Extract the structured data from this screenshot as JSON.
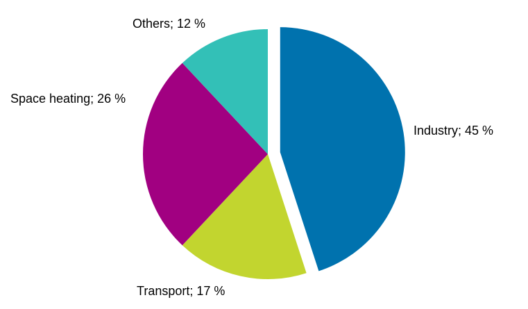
{
  "chart_data": {
    "type": "pie",
    "title": "",
    "start_angle_deg": 0,
    "direction": "clockwise",
    "slices": [
      {
        "name": "Industry",
        "value": 45,
        "label": "Industry; 45 %",
        "color": "#0072AE",
        "exploded": true
      },
      {
        "name": "Transport",
        "value": 17,
        "label": "Transport; 17 %",
        "color": "#C2D52F",
        "exploded": false
      },
      {
        "name": "Space heating",
        "value": 26,
        "label": "Space heating; 26 %",
        "color": "#A10081",
        "exploded": false
      },
      {
        "name": "Others",
        "value": 12,
        "label": "Others; 12 %",
        "color": "#33C0B7",
        "exploded": false
      }
    ],
    "unit": "%"
  },
  "labels": {
    "industry": "Industry; 45 %",
    "transport": "Transport; 17 %",
    "space_heating": "Space heating; 26 %",
    "others": "Others; 12 %"
  }
}
